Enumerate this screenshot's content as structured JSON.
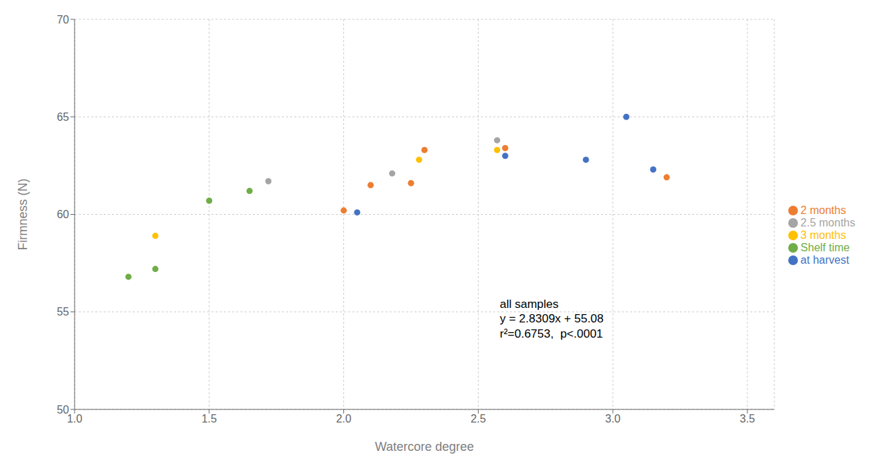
{
  "chart_data": {
    "type": "scatter",
    "xlabel": "Watercore degree",
    "ylabel": "Firmness (N)",
    "xlim": [
      1.0,
      3.6
    ],
    "ylim": [
      50,
      70
    ],
    "xticks": [
      {
        "value": 1.0,
        "label": "1.0"
      },
      1.5,
      {
        "value": 2.0,
        "label": "2.0"
      },
      2.5,
      {
        "value": 3.0,
        "label": "3.0"
      },
      3.5
    ],
    "yticks": [
      50,
      55,
      60,
      65,
      70
    ],
    "grid": true,
    "legend": "right",
    "annotations": [
      {
        "text": "all samples\ny = 2.8309x + 55.08\nr²=0.6753,  p<.0001",
        "x": 2.58,
        "y": 55.8
      }
    ],
    "series": [
      {
        "name": "at harvest",
        "color": "#4472C4",
        "x": [
          2.05,
          2.6,
          2.9,
          3.05,
          3.15
        ],
        "values": [
          60.1,
          63.0,
          62.8,
          65.0,
          62.3
        ]
      },
      {
        "name": "2 months",
        "color": "#ED7D31",
        "x": [
          2.0,
          2.1,
          2.25,
          2.3,
          2.6,
          3.2
        ],
        "values": [
          60.2,
          61.5,
          61.6,
          63.3,
          63.4,
          61.9
        ]
      },
      {
        "name": "2.5 months",
        "color": "#A5A5A5",
        "x": [
          1.72,
          2.18,
          2.57
        ],
        "values": [
          61.7,
          62.1,
          63.8
        ]
      },
      {
        "name": "3 months",
        "color": "#FFC000",
        "x": [
          1.3,
          2.28,
          2.57
        ],
        "values": [
          58.9,
          62.8,
          63.3
        ]
      },
      {
        "name": "Shelf time",
        "color": "#70AD47",
        "x": [
          1.2,
          1.3,
          1.5,
          1.65
        ],
        "values": [
          56.8,
          57.2,
          60.7,
          61.2
        ]
      }
    ]
  }
}
